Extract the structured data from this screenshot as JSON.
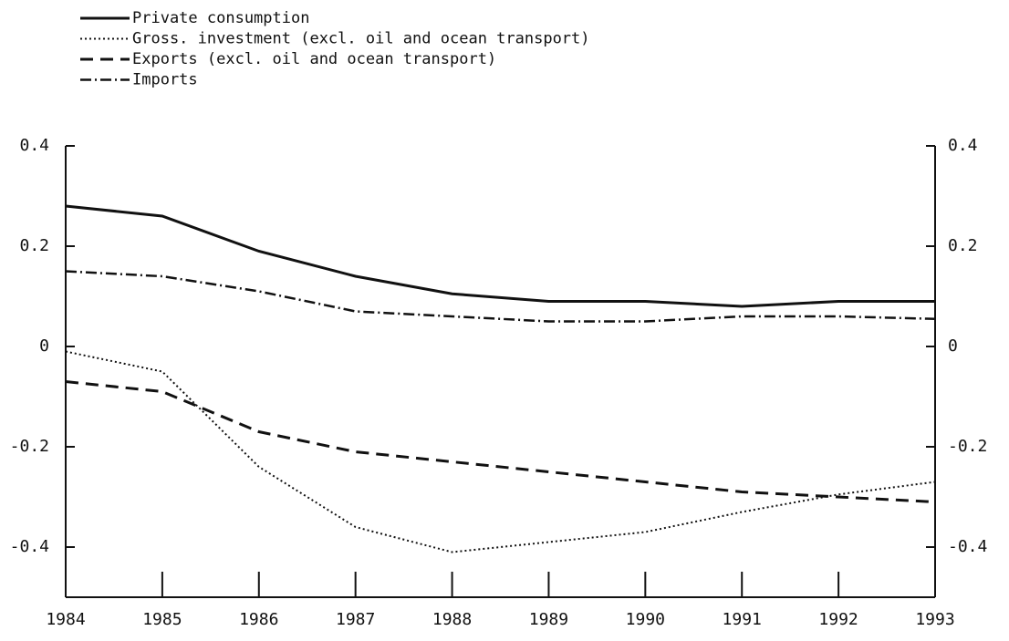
{
  "chart_data": {
    "type": "line",
    "x": [
      1984,
      1985,
      1986,
      1987,
      1988,
      1989,
      1990,
      1991,
      1992,
      1993
    ],
    "series": [
      {
        "name": "Private consumption",
        "color": "#111111",
        "dash": "solid",
        "values": [
          0.28,
          0.26,
          0.19,
          0.14,
          0.105,
          0.09,
          0.09,
          0.08,
          0.09,
          0.09
        ]
      },
      {
        "name": "Gross. investment (excl. oil and ocean transport)",
        "color": "#111111",
        "dash": "dotted",
        "values": [
          -0.01,
          -0.05,
          -0.24,
          -0.36,
          -0.41,
          -0.39,
          -0.37,
          -0.33,
          -0.295,
          -0.27
        ]
      },
      {
        "name": "Exports (excl. oil and ocean transport)",
        "color": "#111111",
        "dash": "dashed",
        "values": [
          -0.07,
          -0.09,
          -0.17,
          -0.21,
          -0.23,
          -0.25,
          -0.27,
          -0.29,
          -0.3,
          -0.31
        ]
      },
      {
        "name": "Imports",
        "color": "#111111",
        "dash": "dashdot",
        "values": [
          0.15,
          0.14,
          0.11,
          0.07,
          0.06,
          0.05,
          0.05,
          0.06,
          0.06,
          0.055
        ]
      }
    ],
    "xlim": [
      1984,
      1993
    ],
    "xticks": [
      1984,
      1985,
      1986,
      1987,
      1988,
      1989,
      1990,
      1991,
      1992,
      1993
    ],
    "ylim": [
      -0.5,
      0.4
    ],
    "yticks": [
      -0.4,
      -0.2,
      0,
      0.2,
      0.4
    ],
    "legend": "top-left"
  }
}
